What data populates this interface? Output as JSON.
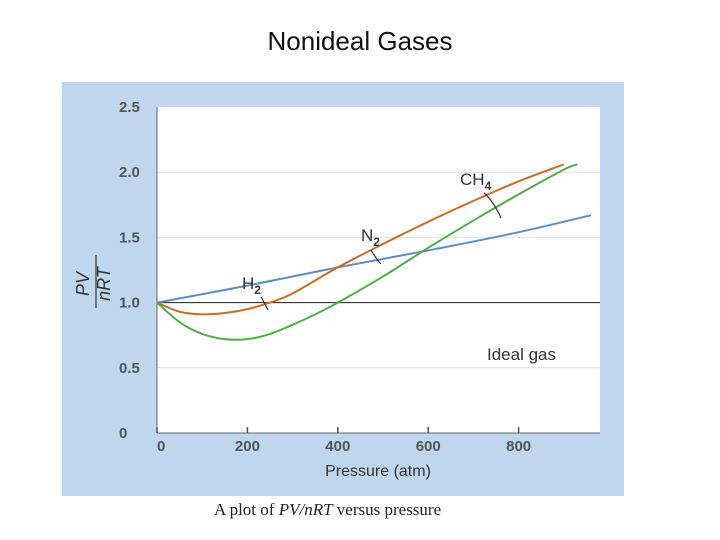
{
  "title": "Nonideal Gases",
  "caption": {
    "prefix": "A plot of ",
    "ratio": "PV/nRT",
    "suffix": " versus pressure"
  },
  "chart_data": {
    "type": "line",
    "xlabel": "Pressure (atm)",
    "ylabel": {
      "numerator": "PV",
      "denominator": "nRT"
    },
    "xlim": [
      0,
      980
    ],
    "ylim": [
      0,
      2.5
    ],
    "x_ticks": [
      "0",
      "200",
      "400",
      "600",
      "800"
    ],
    "y_ticks": [
      "0",
      "0.5",
      "1.0",
      "1.5",
      "2.0",
      "2.5"
    ],
    "ideal": {
      "name": "Ideal gas",
      "value": 1.0
    },
    "series": [
      {
        "name": "H",
        "sub": "2",
        "color": "#5b8fc9",
        "x": [
          0,
          200,
          400,
          600,
          800,
          960
        ],
        "y": [
          1.0,
          1.13,
          1.27,
          1.4,
          1.54,
          1.67
        ]
      },
      {
        "name": "N",
        "sub": "2",
        "color": "#d2691e",
        "x": [
          0,
          50,
          100,
          150,
          200,
          250,
          300,
          400,
          500,
          600,
          700,
          800,
          900
        ],
        "y": [
          1.0,
          0.93,
          0.91,
          0.92,
          0.95,
          1.0,
          1.07,
          1.27,
          1.45,
          1.62,
          1.78,
          1.93,
          2.06
        ]
      },
      {
        "name": "CH",
        "sub": "4",
        "color": "#4fae47",
        "x": [
          0,
          50,
          100,
          150,
          200,
          250,
          300,
          350,
          400,
          500,
          600,
          700,
          800,
          900,
          930
        ],
        "y": [
          1.0,
          0.85,
          0.76,
          0.72,
          0.72,
          0.76,
          0.83,
          0.91,
          1.0,
          1.2,
          1.42,
          1.63,
          1.83,
          2.02,
          2.06
        ]
      }
    ]
  }
}
